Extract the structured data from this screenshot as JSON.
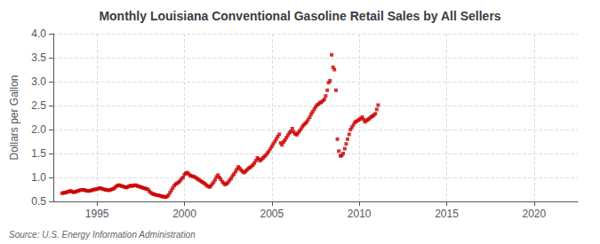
{
  "chart_data": {
    "type": "scatter",
    "title": "Monthly Louisiana Conventional Gasoline Retail Sales by All Sellers",
    "y_label": "Dollars per Gallon",
    "annotations": [
      "Source: U.S. Energy Information Administration"
    ],
    "color": "#cc0000",
    "marker": "square",
    "grid": true,
    "xlim": [
      1992.5,
      2022.5
    ],
    "xticks": [
      1995,
      2000,
      2005,
      2010,
      2015,
      2020
    ],
    "ylim": [
      0.5,
      4.0
    ],
    "yticks": [
      0.5,
      {
        "value": 1.0,
        "label": "1.0"
      },
      1.5,
      {
        "value": 2.0,
        "label": "2.0"
      },
      2.5,
      {
        "value": 3.0,
        "label": "3.0"
      },
      3.5,
      {
        "value": 4.0,
        "label": "4.0"
      }
    ],
    "x": [
      1993.0,
      1993.08,
      1993.17,
      1993.25,
      1993.33,
      1993.42,
      1993.5,
      1993.58,
      1993.67,
      1993.75,
      1993.83,
      1993.92,
      1994.0,
      1994.08,
      1994.17,
      1994.25,
      1994.33,
      1994.42,
      1994.5,
      1994.58,
      1994.67,
      1994.75,
      1994.83,
      1994.92,
      1995.0,
      1995.08,
      1995.17,
      1995.25,
      1995.33,
      1995.42,
      1995.5,
      1995.58,
      1995.67,
      1995.75,
      1995.83,
      1995.92,
      1996.0,
      1996.08,
      1996.17,
      1996.25,
      1996.33,
      1996.42,
      1996.5,
      1996.58,
      1996.67,
      1996.75,
      1996.83,
      1996.92,
      1997.0,
      1997.08,
      1997.17,
      1997.25,
      1997.33,
      1997.42,
      1997.5,
      1997.58,
      1997.67,
      1997.75,
      1997.83,
      1997.92,
      1998.0,
      1998.08,
      1998.17,
      1998.25,
      1998.33,
      1998.42,
      1998.5,
      1998.58,
      1998.67,
      1998.75,
      1998.83,
      1998.92,
      1999.0,
      1999.08,
      1999.17,
      1999.25,
      1999.33,
      1999.42,
      1999.5,
      1999.58,
      1999.67,
      1999.75,
      1999.83,
      1999.92,
      2000.0,
      2000.08,
      2000.17,
      2000.25,
      2000.33,
      2000.42,
      2000.5,
      2000.58,
      2000.67,
      2000.75,
      2000.83,
      2000.92,
      2001.0,
      2001.08,
      2001.17,
      2001.25,
      2001.33,
      2001.42,
      2001.5,
      2001.58,
      2001.67,
      2001.75,
      2001.83,
      2001.92,
      2002.0,
      2002.08,
      2002.17,
      2002.25,
      2002.33,
      2002.42,
      2002.5,
      2002.58,
      2002.67,
      2002.75,
      2002.83,
      2002.92,
      2003.0,
      2003.08,
      2003.17,
      2003.25,
      2003.33,
      2003.42,
      2003.5,
      2003.58,
      2003.67,
      2003.75,
      2003.83,
      2003.92,
      2004.0,
      2004.08,
      2004.17,
      2004.25,
      2004.33,
      2004.42,
      2004.5,
      2004.58,
      2004.67,
      2004.75,
      2004.83,
      2004.92,
      2005.0,
      2005.08,
      2005.17,
      2005.25,
      2005.33,
      2005.42,
      2005.5,
      2005.58,
      2005.67,
      2005.75,
      2005.83,
      2005.92,
      2006.0,
      2006.08,
      2006.17,
      2006.25,
      2006.33,
      2006.42,
      2006.5,
      2006.58,
      2006.67,
      2006.75,
      2006.83,
      2006.92,
      2007.0,
      2007.08,
      2007.17,
      2007.25,
      2007.33,
      2007.42,
      2007.5,
      2007.58,
      2007.67,
      2007.75,
      2007.83,
      2007.92,
      2008.0,
      2008.08,
      2008.17,
      2008.25,
      2008.33,
      2008.42,
      2008.5,
      2008.58,
      2008.67,
      2008.75,
      2008.83,
      2008.92,
      2009.0,
      2009.08,
      2009.17,
      2009.25,
      2009.33,
      2009.42,
      2009.5,
      2009.58,
      2009.67,
      2009.75,
      2009.83,
      2009.92,
      2010.0,
      2010.08,
      2010.17,
      2010.25,
      2010.33,
      2010.42,
      2010.5,
      2010.58,
      2010.67,
      2010.75,
      2010.83,
      2010.92,
      2011.0,
      2011.08
    ],
    "values": [
      0.67,
      0.68,
      0.68,
      0.69,
      0.7,
      0.71,
      0.72,
      0.7,
      0.69,
      0.7,
      0.71,
      0.72,
      0.73,
      0.74,
      0.74,
      0.74,
      0.73,
      0.72,
      0.72,
      0.72,
      0.73,
      0.74,
      0.75,
      0.75,
      0.76,
      0.77,
      0.78,
      0.77,
      0.76,
      0.75,
      0.74,
      0.74,
      0.73,
      0.74,
      0.75,
      0.76,
      0.78,
      0.81,
      0.83,
      0.84,
      0.83,
      0.82,
      0.81,
      0.8,
      0.79,
      0.8,
      0.82,
      0.83,
      0.82,
      0.83,
      0.84,
      0.83,
      0.82,
      0.81,
      0.8,
      0.79,
      0.78,
      0.77,
      0.76,
      0.75,
      0.71,
      0.68,
      0.66,
      0.65,
      0.64,
      0.63,
      0.63,
      0.62,
      0.61,
      0.6,
      0.6,
      0.59,
      0.6,
      0.63,
      0.68,
      0.73,
      0.78,
      0.83,
      0.86,
      0.88,
      0.9,
      0.93,
      0.97,
      1.0,
      1.06,
      1.09,
      1.1,
      1.07,
      1.04,
      1.03,
      1.02,
      1.01,
      0.99,
      0.97,
      0.95,
      0.93,
      0.91,
      0.89,
      0.87,
      0.84,
      0.82,
      0.8,
      0.82,
      0.86,
      0.9,
      0.95,
      1.01,
      1.05,
      1.0,
      0.96,
      0.91,
      0.88,
      0.85,
      0.87,
      0.9,
      0.94,
      0.98,
      1.03,
      1.07,
      1.12,
      1.17,
      1.22,
      1.19,
      1.15,
      1.12,
      1.1,
      1.13,
      1.16,
      1.19,
      1.21,
      1.23,
      1.26,
      1.3,
      1.35,
      1.41,
      1.38,
      1.35,
      1.38,
      1.41,
      1.44,
      1.47,
      1.51,
      1.55,
      1.6,
      1.65,
      1.7,
      1.75,
      1.8,
      1.85,
      1.9,
      1.72,
      1.68,
      1.74,
      1.78,
      1.83,
      1.88,
      1.93,
      1.96,
      2.02,
      1.95,
      1.91,
      1.89,
      1.93,
      1.97,
      2.01,
      2.06,
      2.1,
      2.13,
      2.16,
      2.21,
      2.26,
      2.32,
      2.37,
      2.42,
      2.47,
      2.51,
      2.53,
      2.56,
      2.57,
      2.6,
      2.63,
      2.7,
      2.82,
      2.98,
      3.02,
      3.56,
      3.3,
      3.25,
      2.82,
      1.8,
      1.55,
      1.45,
      1.46,
      1.5,
      1.6,
      1.7,
      1.8,
      1.9,
      2.0,
      2.05,
      2.1,
      2.15,
      2.17,
      2.19,
      2.21,
      2.23,
      2.26,
      2.21,
      2.16,
      2.19,
      2.21,
      2.23,
      2.26,
      2.28,
      2.3,
      2.33,
      2.42,
      2.51
    ]
  }
}
